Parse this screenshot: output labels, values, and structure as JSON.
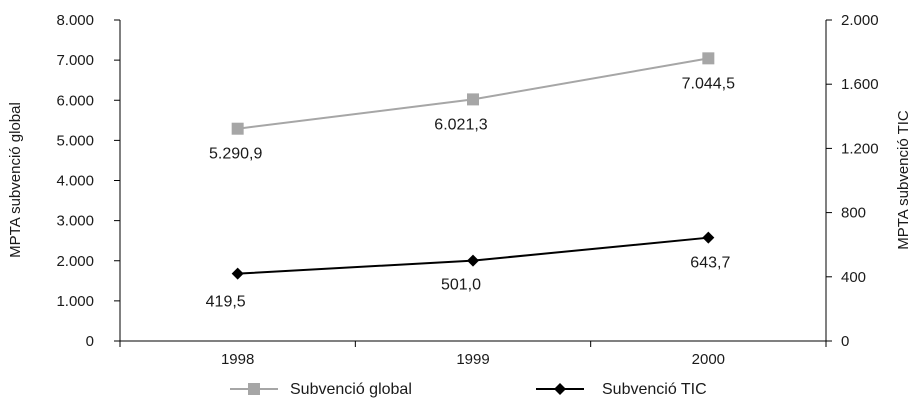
{
  "chart_data": {
    "type": "line",
    "categories": [
      "1998",
      "1999",
      "2000"
    ],
    "series": [
      {
        "name": "Subvenció global",
        "axis": "left",
        "color": "#a6a6a6",
        "marker": "square",
        "values": [
          5290.9,
          6021.3,
          7044.5
        ],
        "value_labels": [
          "5.290,9",
          "6.021,3",
          "7.044,5"
        ]
      },
      {
        "name": "Subvenció TIC",
        "axis": "right",
        "color": "#000000",
        "marker": "diamond",
        "values": [
          419.5,
          501.0,
          643.7
        ],
        "value_labels": [
          "419,5",
          "501,0",
          "643,7"
        ]
      }
    ],
    "y_left": {
      "label": "MPTA subvenció global",
      "ylim": [
        0,
        8000
      ],
      "ticks": [
        0,
        1000,
        2000,
        3000,
        4000,
        5000,
        6000,
        7000,
        8000
      ],
      "tick_labels": [
        "0",
        "1.000",
        "2.000",
        "3.000",
        "4.000",
        "5.000",
        "6.000",
        "7.000",
        "8.000"
      ]
    },
    "y_right": {
      "label": "MPTA subvenció TIC",
      "ylim": [
        0,
        2000
      ],
      "ticks": [
        0,
        400,
        800,
        1200,
        1600,
        2000
      ],
      "tick_labels": [
        "0",
        "400",
        "800",
        "1.200",
        "1.600",
        "2.000"
      ]
    },
    "grid": false,
    "legend_position": "bottom"
  }
}
